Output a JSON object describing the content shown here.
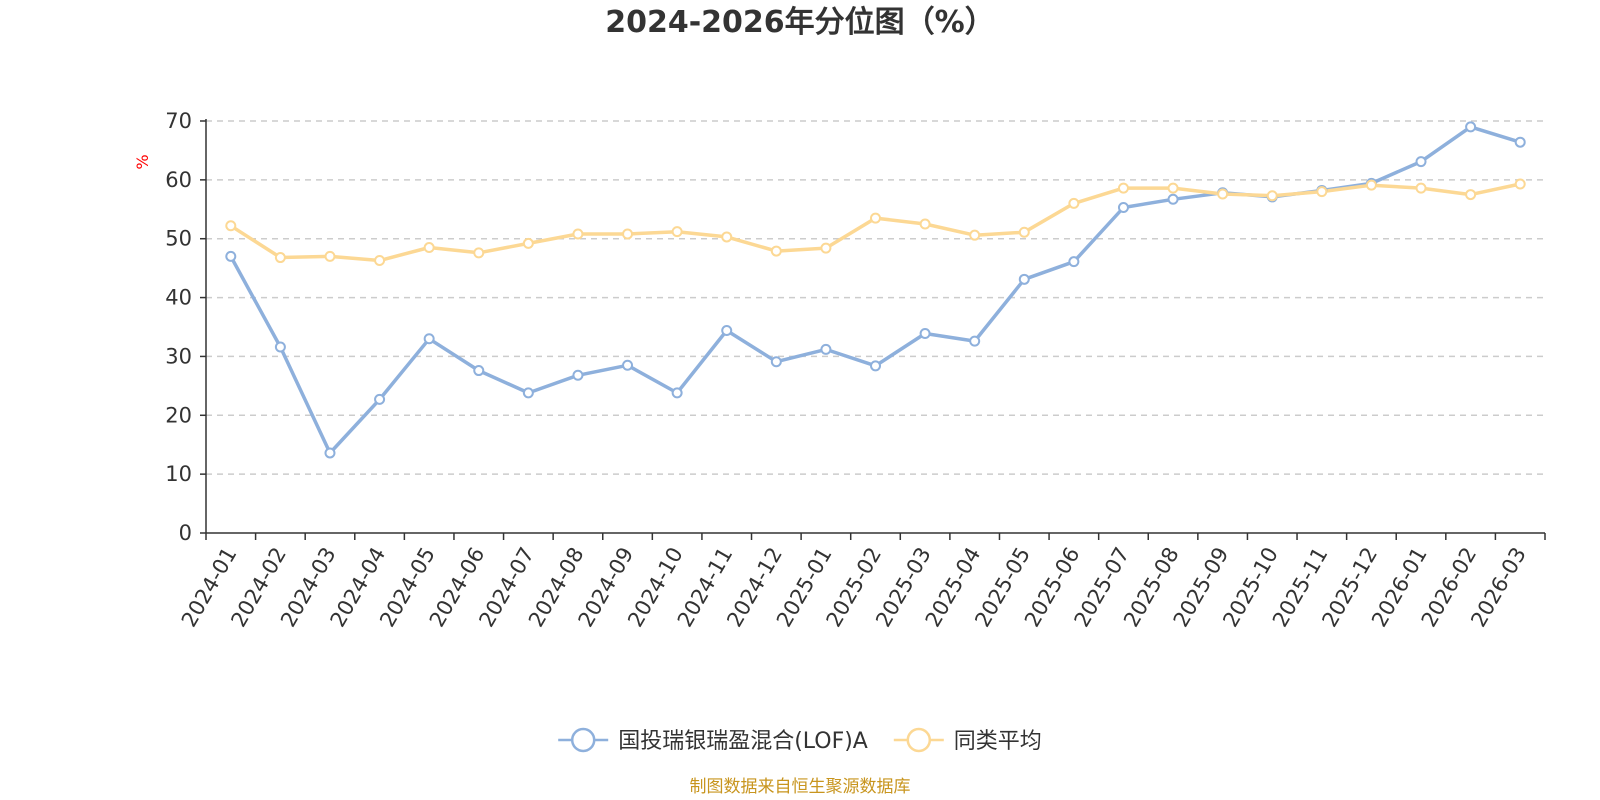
{
  "chart_data": {
    "type": "line",
    "title": "2024-2026年分位图（%）",
    "ylabel": "%",
    "xlabel": "",
    "ylim": [
      0,
      70
    ],
    "yticks": [
      0,
      10,
      20,
      30,
      40,
      50,
      60,
      70
    ],
    "grid": true,
    "legend": "bottom-center",
    "categories": [
      "2024-01",
      "2024-02",
      "2024-03",
      "2024-04",
      "2024-05",
      "2024-06",
      "2024-07",
      "2024-08",
      "2024-09",
      "2024-10",
      "2024-11",
      "2024-12",
      "2025-01",
      "2025-02",
      "2025-03",
      "2025-04",
      "2025-05",
      "2025-06",
      "2025-07",
      "2025-08",
      "2025-09",
      "2025-10",
      "2025-11",
      "2025-12",
      "2026-01",
      "2026-02",
      "2026-03"
    ],
    "series": [
      {
        "name": "国投瑞银瑞盈混合(LOF)A",
        "color": "#8eb0dc",
        "values": [
          47.0,
          31.6,
          13.6,
          22.7,
          33.0,
          27.6,
          23.8,
          26.8,
          28.5,
          23.8,
          34.4,
          29.1,
          31.2,
          28.4,
          33.9,
          32.6,
          43.1,
          46.1,
          55.3,
          56.7,
          57.8,
          57.1,
          58.2,
          59.4,
          63.1,
          69.0,
          66.4
        ]
      },
      {
        "name": "同类平均",
        "color": "#fcd894",
        "values": [
          52.2,
          46.8,
          47.0,
          46.3,
          48.5,
          47.6,
          49.2,
          50.8,
          50.8,
          51.2,
          50.3,
          47.9,
          48.4,
          53.5,
          52.5,
          50.6,
          51.1,
          56.0,
          58.6,
          58.6,
          57.6,
          57.3,
          58.0,
          59.1,
          58.6,
          57.5,
          59.3
        ]
      }
    ]
  },
  "source_note": "制图数据来自恒生聚源数据库"
}
